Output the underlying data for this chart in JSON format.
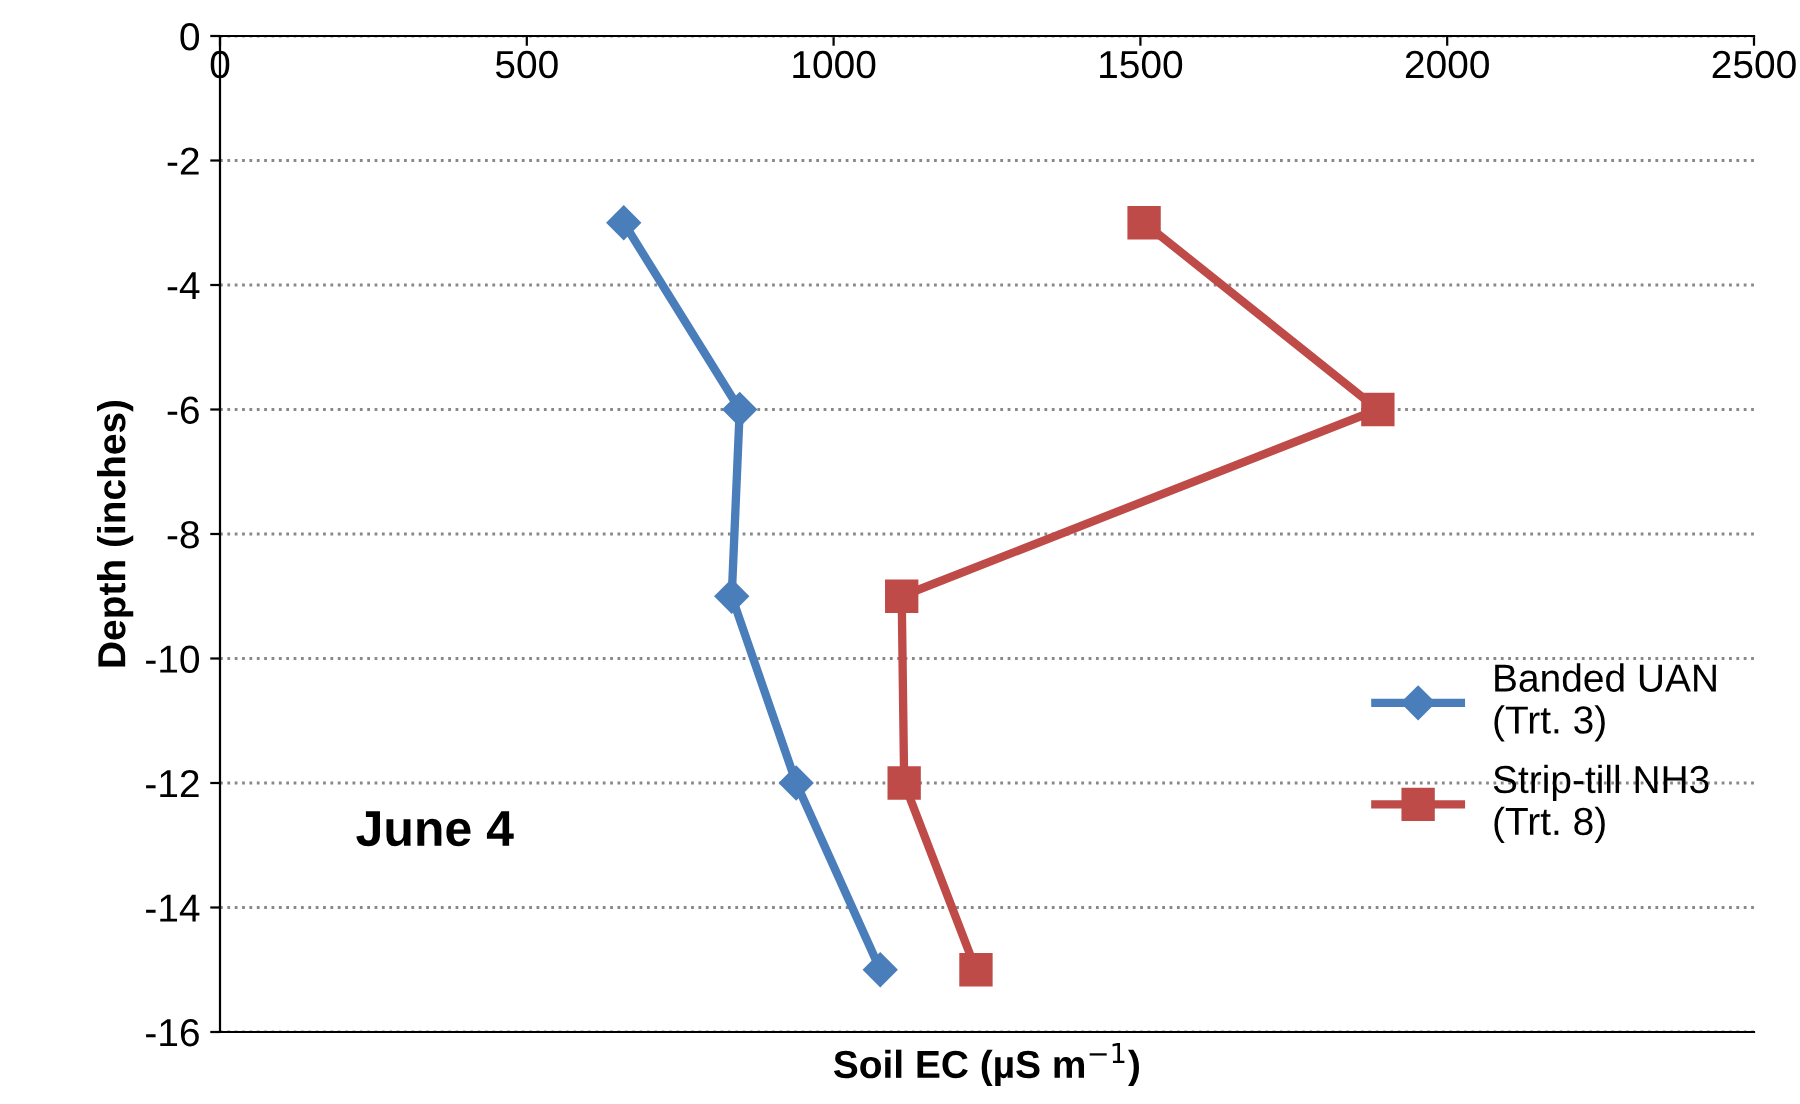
{
  "chart_data": {
    "type": "line",
    "xlabel": "Soil EC (µS m$^{−1}$)",
    "ylabel": "Depth (inches)",
    "xlim": [
      0,
      2500
    ],
    "xticks": [
      0,
      500,
      1000,
      1500,
      2000,
      2500
    ],
    "ylim": [
      -16,
      0
    ],
    "yticks": [
      -16,
      -14,
      -12,
      -10,
      -8,
      -6,
      -4,
      -2,
      0
    ],
    "grid": "y",
    "legend": "right",
    "annotations": [
      "June 4"
    ],
    "series": [
      {
        "name": "Banded UAN\n(Trt. 3)",
        "color": "#4a7ebb",
        "marker": "diamond",
        "x": [
          658,
          847,
          834,
          939,
          1076
        ],
        "values": [
          -3,
          -6,
          -9,
          -12,
          -15
        ]
      },
      {
        "name": "Strip-till NH3\n(Trt. 8)",
        "color": "#be4b48",
        "marker": "square",
        "x": [
          1506,
          1887,
          1111,
          1115,
          1232
        ],
        "values": [
          -3,
          -6,
          -9,
          -12,
          -15
        ]
      }
    ]
  }
}
